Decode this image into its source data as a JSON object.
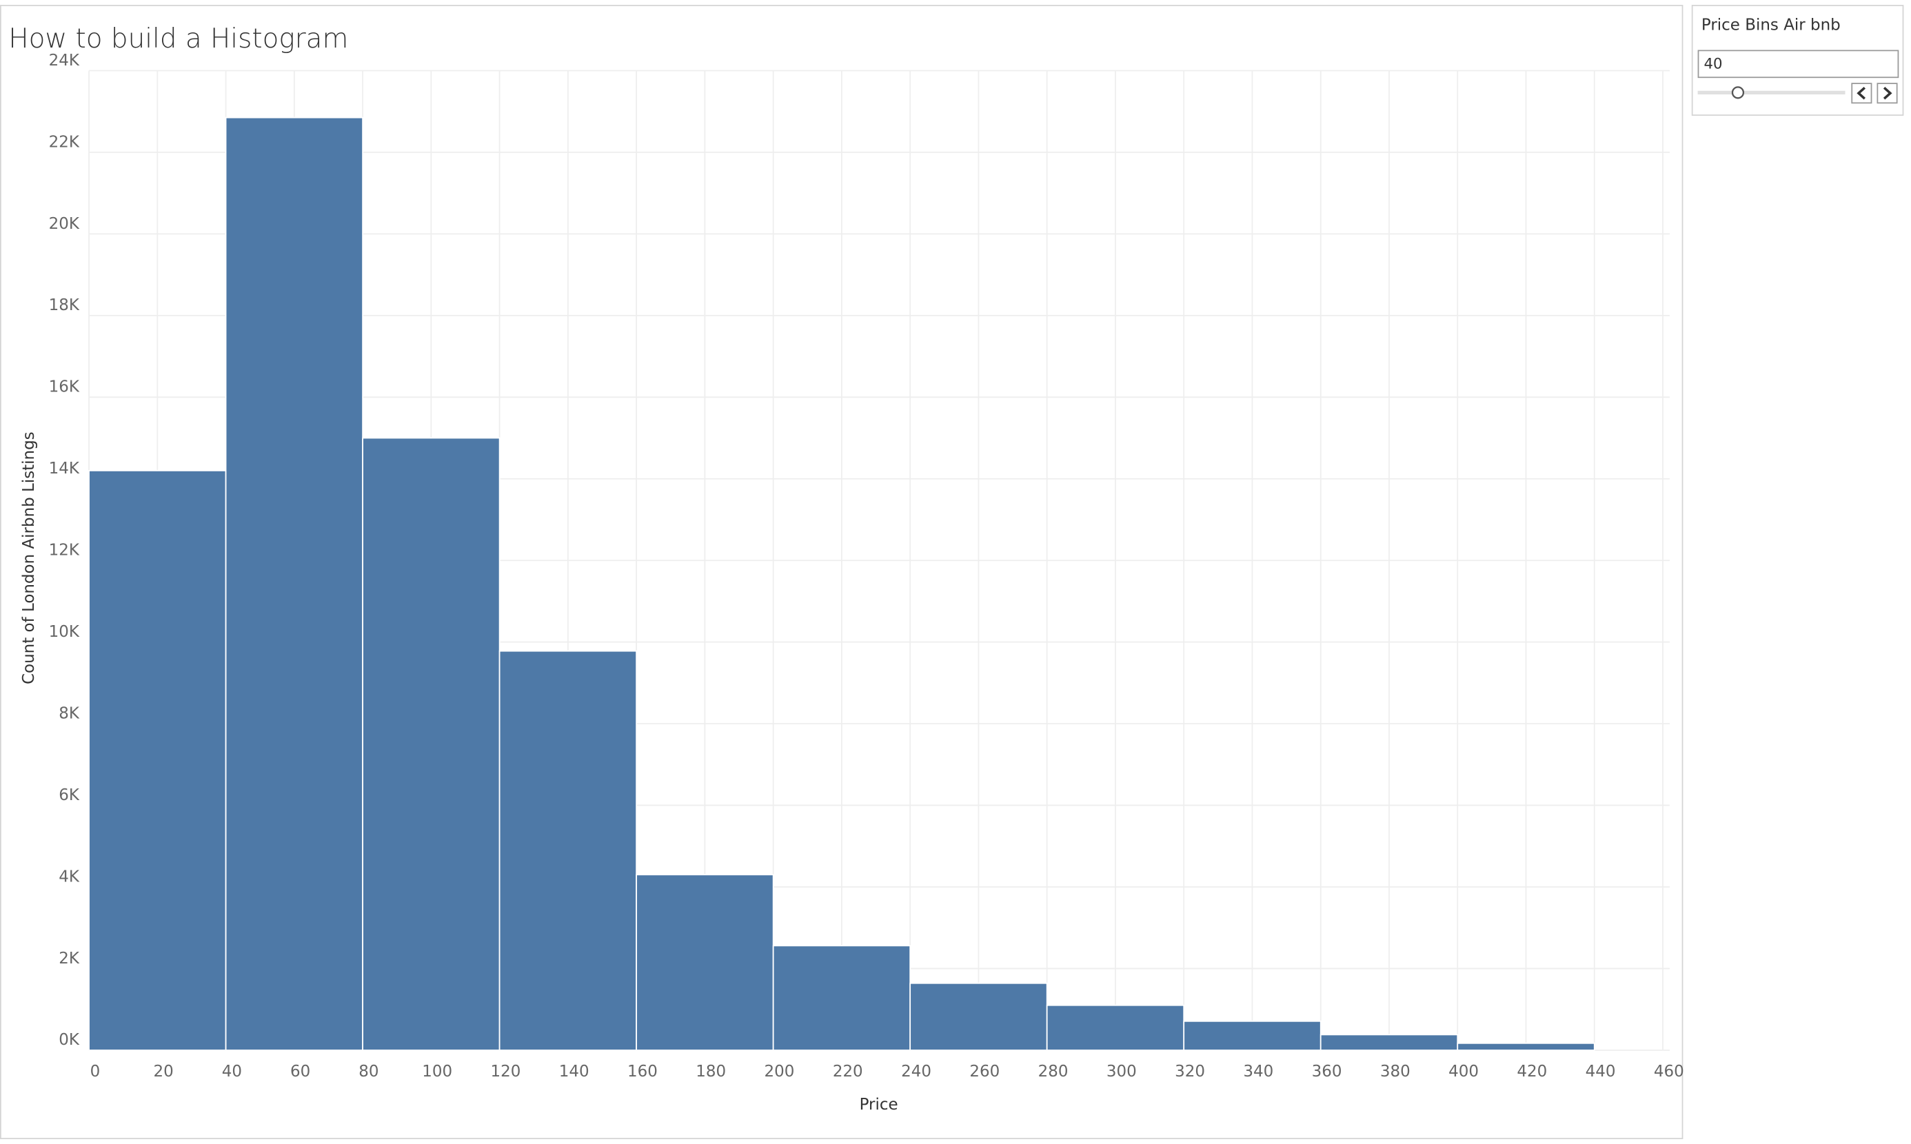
{
  "chart_data": {
    "type": "histogram",
    "title": "How to build a Histogram",
    "x_label": "Price",
    "y_label": "Count of London Airbnb Listings",
    "bins": [
      0,
      40,
      80,
      120,
      160,
      200,
      240,
      280,
      320,
      360,
      400,
      440
    ],
    "values": [
      14200,
      22850,
      15000,
      9780,
      4300,
      2560,
      1640,
      1100,
      710,
      380,
      170
    ],
    "color": "#4e79a7",
    "grid": true,
    "xlim": [
      0,
      462
    ],
    "xticks": [
      0,
      20,
      40,
      60,
      80,
      100,
      120,
      140,
      160,
      180,
      200,
      220,
      240,
      260,
      280,
      300,
      320,
      340,
      360,
      380,
      400,
      420,
      440,
      460
    ],
    "ylim": [
      0,
      24000
    ],
    "yticks": [
      {
        "value": 0,
        "label": "0K"
      },
      {
        "value": 2000,
        "label": "2K"
      },
      {
        "value": 4000,
        "label": "4K"
      },
      {
        "value": 6000,
        "label": "6K"
      },
      {
        "value": 8000,
        "label": "8K"
      },
      {
        "value": 10000,
        "label": "10K"
      },
      {
        "value": 12000,
        "label": "12K"
      },
      {
        "value": 14000,
        "label": "14K"
      },
      {
        "value": 16000,
        "label": "16K"
      },
      {
        "value": 18000,
        "label": "18K"
      },
      {
        "value": 20000,
        "label": "20K"
      },
      {
        "value": 22000,
        "label": "22K"
      },
      {
        "value": 24000,
        "label": "24K"
      }
    ]
  },
  "parameter": {
    "title": "Price Bins Air bnb",
    "value": "40"
  }
}
